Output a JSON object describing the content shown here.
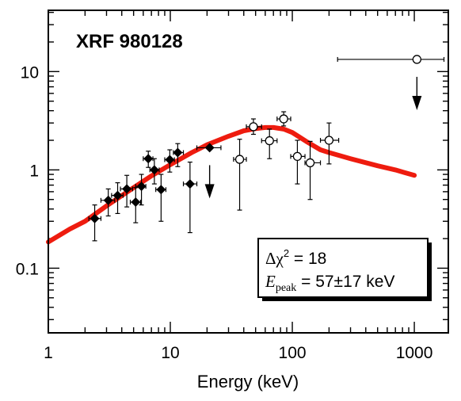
{
  "chart_data": {
    "type": "scatter",
    "title": "XRF 980128",
    "xlabel": "Energy (keV)",
    "ylabel": "",
    "x_scale": "log",
    "y_scale": "log",
    "xlim": [
      1,
      1900
    ],
    "ylim": [
      0.022,
      42
    ],
    "x_ticks": [
      {
        "value": 1,
        "label": "1"
      },
      {
        "value": 10,
        "label": "10"
      },
      {
        "value": 100,
        "label": "100"
      },
      {
        "value": 1000,
        "label": "1000"
      }
    ],
    "y_ticks": [
      {
        "value": 0.1,
        "label": "0.1"
      },
      {
        "value": 1,
        "label": "1"
      },
      {
        "value": 10,
        "label": "10"
      }
    ],
    "grid": false,
    "legend": null,
    "series": [
      {
        "marker": "filled-diamond",
        "points": [
          {
            "x": 2.4,
            "y": 0.32,
            "xerr": [
              2.15,
              2.7
            ],
            "yerr": [
              0.19,
              0.44
            ]
          },
          {
            "x": 3.1,
            "y": 0.49,
            "xerr": [
              2.7,
              3.5
            ],
            "yerr": [
              0.34,
              0.64
            ]
          },
          {
            "x": 3.7,
            "y": 0.55,
            "xerr": [
              3.3,
              4.1
            ],
            "yerr": [
              0.36,
              0.74
            ]
          },
          {
            "x": 4.4,
            "y": 0.64,
            "xerr": [
              3.9,
              4.9
            ],
            "yerr": [
              0.42,
              0.88
            ]
          },
          {
            "x": 5.2,
            "y": 0.47,
            "xerr": [
              4.7,
              5.7
            ],
            "yerr": [
              0.29,
              0.66
            ]
          },
          {
            "x": 5.8,
            "y": 0.68,
            "xerr": [
              5.2,
              6.3
            ],
            "yerr": [
              0.44,
              0.9
            ]
          },
          {
            "x": 6.6,
            "y": 1.3,
            "xerr": [
              6.0,
              7.2
            ],
            "yerr": [
              1.06,
              1.55
            ]
          },
          {
            "x": 7.4,
            "y": 1.0,
            "xerr": [
              6.8,
              8.1
            ],
            "yerr": [
              0.72,
              1.3
            ]
          },
          {
            "x": 8.4,
            "y": 0.63,
            "xerr": [
              7.6,
              9.2
            ],
            "yerr": [
              0.3,
              0.9
            ]
          },
          {
            "x": 9.9,
            "y": 1.27,
            "xerr": [
              9.0,
              10.8
            ],
            "yerr": [
              0.95,
              1.6
            ]
          },
          {
            "x": 11.5,
            "y": 1.5,
            "xerr": [
              10.6,
              12.8
            ],
            "yerr": [
              1.08,
              1.85
            ]
          },
          {
            "x": 14.5,
            "y": 0.72,
            "xerr": [
              12.8,
              16.5
            ],
            "yerr": [
              0.23,
              1.2
            ]
          },
          {
            "x": 21,
            "y": 1.68,
            "xerr": [
              16.5,
              26
            ],
            "upper_limit": true
          }
        ]
      },
      {
        "marker": "open-circle",
        "points": [
          {
            "x": 37,
            "y": 1.28,
            "xerr": [
              33,
              42
            ],
            "yerr": [
              0.39,
              2.05
            ]
          },
          {
            "x": 48,
            "y": 2.75,
            "xerr": [
              42,
              56
            ],
            "yerr": [
              2.3,
              3.3
            ]
          },
          {
            "x": 65,
            "y": 1.98,
            "xerr": [
              56,
              75
            ],
            "yerr": [
              1.3,
              2.6
            ]
          },
          {
            "x": 85,
            "y": 3.3,
            "xerr": [
              75,
              97
            ],
            "yerr": [
              2.8,
              3.9
            ]
          },
          {
            "x": 110,
            "y": 1.37,
            "xerr": [
              97,
              127
            ],
            "yerr": [
              0.72,
              2.0
            ]
          },
          {
            "x": 140,
            "y": 1.18,
            "xerr": [
              127,
              170
            ],
            "yerr": [
              0.5,
              1.95
            ]
          },
          {
            "x": 200,
            "y": 2.0,
            "xerr": [
              170,
              240
            ],
            "yerr": [
              1.15,
              3.0
            ]
          },
          {
            "x": 1050,
            "y": 13.3,
            "xerr": [
              235,
              1750
            ],
            "upper_limit": true
          }
        ]
      },
      {
        "type": "line",
        "color": "#ee1c0f",
        "points": [
          {
            "x": 1,
            "y": 0.185
          },
          {
            "x": 1.5,
            "y": 0.25
          },
          {
            "x": 2,
            "y": 0.3
          },
          {
            "x": 3,
            "y": 0.43
          },
          {
            "x": 5,
            "y": 0.66
          },
          {
            "x": 7,
            "y": 0.87
          },
          {
            "x": 10,
            "y": 1.13
          },
          {
            "x": 15,
            "y": 1.5
          },
          {
            "x": 20,
            "y": 1.8
          },
          {
            "x": 30,
            "y": 2.2
          },
          {
            "x": 40,
            "y": 2.5
          },
          {
            "x": 50,
            "y": 2.63
          },
          {
            "x": 60,
            "y": 2.7
          },
          {
            "x": 70,
            "y": 2.7
          },
          {
            "x": 85,
            "y": 2.6
          },
          {
            "x": 100,
            "y": 2.4
          },
          {
            "x": 130,
            "y": 1.95
          },
          {
            "x": 170,
            "y": 1.6
          },
          {
            "x": 200,
            "y": 1.5
          },
          {
            "x": 300,
            "y": 1.3
          },
          {
            "x": 500,
            "y": 1.1
          },
          {
            "x": 700,
            "y": 1.0
          },
          {
            "x": 1000,
            "y": 0.88
          }
        ]
      }
    ],
    "annotation": {
      "line1_symbol": "Δχ",
      "line1_sup": "2",
      "line1_rest": " = 18",
      "line2_var": "E",
      "line2_sub": "peak",
      "line2_rest": " = 57±17 keV"
    }
  }
}
